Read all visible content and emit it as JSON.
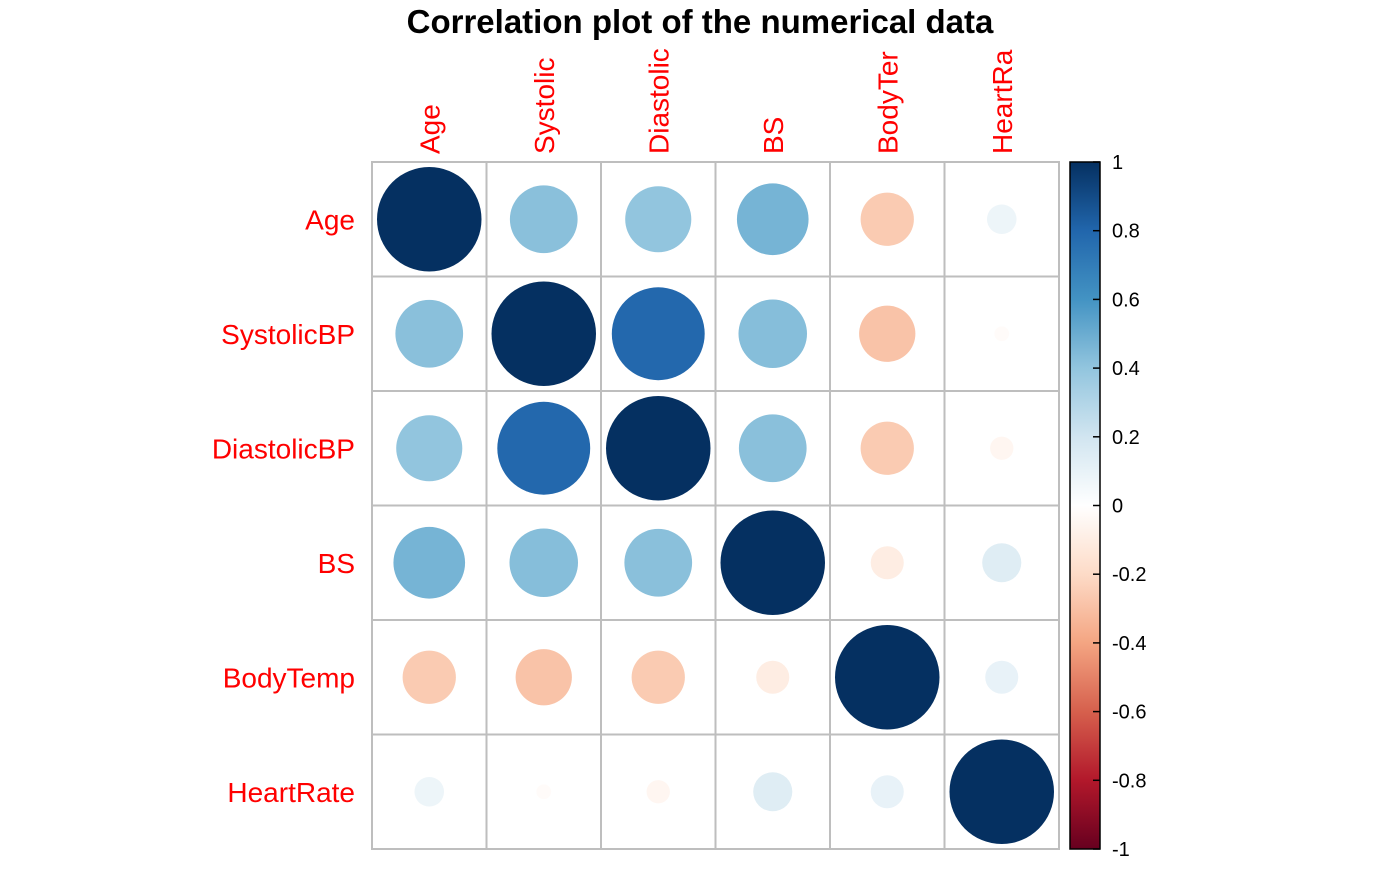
{
  "chart_data": {
    "type": "heatmap",
    "title": "Correlation plot of the numerical data",
    "row_labels": [
      "Age",
      "SystolicBP",
      "DiastolicBP",
      "BS",
      "BodyTemp",
      "HeartRate"
    ],
    "col_labels": [
      "Age",
      "Systolic",
      "Diastolic",
      "BS",
      "BodyTer",
      "HeartRa"
    ],
    "matrix": [
      [
        1.0,
        0.42,
        0.4,
        0.47,
        -0.26,
        0.08
      ],
      [
        0.42,
        1.0,
        0.79,
        0.43,
        -0.29,
        -0.02
      ],
      [
        0.4,
        0.79,
        1.0,
        0.42,
        -0.26,
        -0.05
      ],
      [
        0.47,
        0.43,
        0.42,
        1.0,
        -0.1,
        0.14
      ],
      [
        -0.26,
        -0.29,
        -0.26,
        -0.1,
        1.0,
        0.1
      ],
      [
        0.08,
        -0.02,
        -0.05,
        0.14,
        0.1,
        1.0
      ]
    ],
    "colorbar": {
      "range": [
        -1,
        1
      ],
      "ticks": [
        1,
        0.8,
        0.6,
        0.4,
        0.2,
        0,
        -0.2,
        -0.4,
        -0.6,
        -0.8,
        -1
      ],
      "tick_labels": [
        "1",
        "0.8",
        "0.6",
        "0.4",
        "0.2",
        "0",
        "-0.2",
        "-0.4",
        "-0.6",
        "-0.8",
        "-1"
      ],
      "colors": [
        "#67001F",
        "#B2182B",
        "#D6604D",
        "#F4A582",
        "#FDDBC7",
        "#FFFFFF",
        "#D1E5F0",
        "#92C5DE",
        "#4393C3",
        "#2166AC",
        "#053061"
      ]
    },
    "label_color": "#FF0000",
    "grid_color": "#BEBEBE"
  }
}
